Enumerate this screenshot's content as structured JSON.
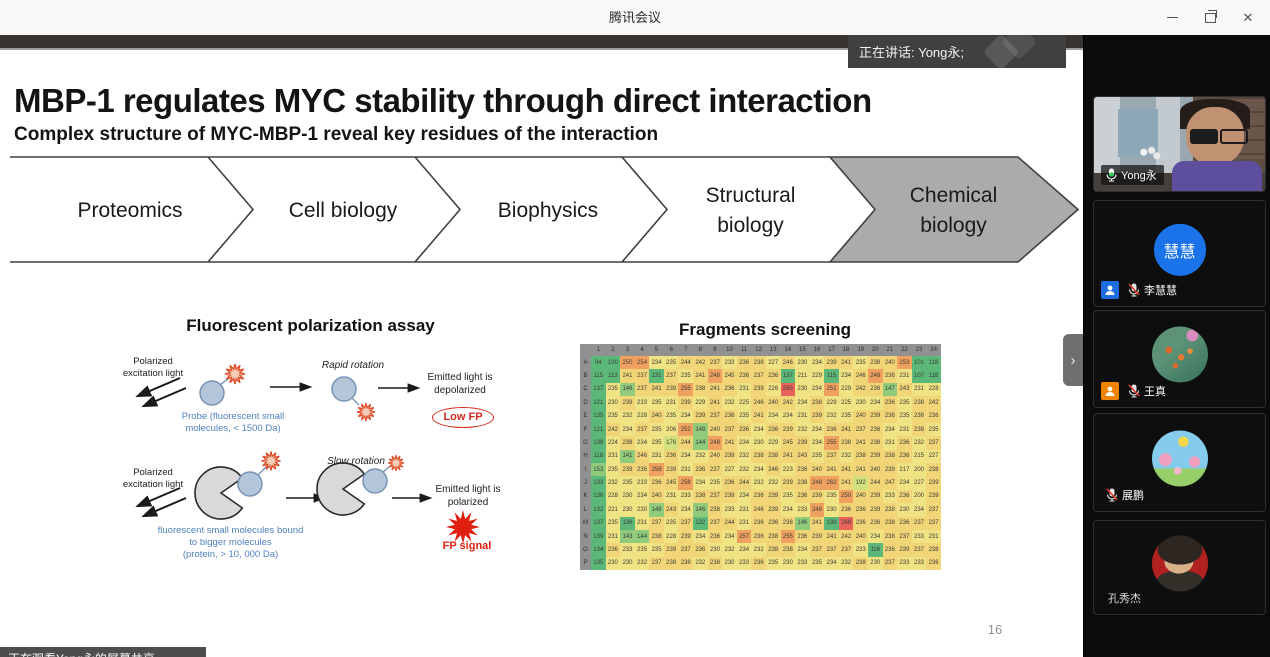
{
  "window": {
    "title": "腾讯会议",
    "controls": {
      "close": "✕"
    }
  },
  "speaker_banner": {
    "label": "正在讲话: Yong永;"
  },
  "share_overlay": {
    "label": "正在观看Yong永的屏幕共享"
  },
  "slide": {
    "title": "MBP-1 regulates MYC stability through direct interaction",
    "subtitle": "Complex structure of MYC-MBP-1 reveal key residues of the interaction",
    "page_number": "16",
    "pipeline": {
      "steps": [
        {
          "label": "Proteomics",
          "highlighted": false
        },
        {
          "label": "Cell biology",
          "highlighted": false
        },
        {
          "label": "Biophysics",
          "highlighted": false
        },
        {
          "label": "Structural\nbiology",
          "highlighted": false
        },
        {
          "label": "Chemical\nbiology",
          "highlighted": true
        }
      ]
    },
    "fp_assay": {
      "title": "Fluorescent polarization assay",
      "row1": {
        "left_label": "Polarized\nexcitation light",
        "motion_label": "Rapid rotation",
        "result_label": "Emitted light is\ndepolarized",
        "result_badge": "Low FP",
        "caption": "Probe (fluorescent small\nmolecules, < 1500 Da)"
      },
      "row2": {
        "left_label": "Polarized\nexcitation light",
        "motion_label": "Slow rotation",
        "result_label": "Emitted light is\npolarized",
        "result_badge": "FP signal",
        "caption": "fluorescent small molecules bound\nto bigger molecules\n(protein,  > 10, 000 Da)"
      }
    },
    "fragments": {
      "title": "Fragments screening",
      "col_labels": [
        "1",
        "2",
        "3",
        "4",
        "5",
        "6",
        "7",
        "8",
        "9",
        "10",
        "11",
        "12",
        "13",
        "14",
        "15",
        "16",
        "17",
        "18",
        "19",
        "20",
        "21",
        "22",
        "23",
        "24"
      ],
      "row_labels": [
        "A",
        "B",
        "C",
        "D",
        "E",
        "F",
        "G",
        "H",
        "I",
        "J",
        "K",
        "L",
        "M",
        "N",
        "O",
        "P"
      ],
      "cells": [
        [
          94,
          100,
          250,
          254,
          234,
          235,
          244,
          242,
          237,
          233,
          236,
          238,
          227,
          246,
          230,
          234,
          239,
          241,
          235,
          238,
          240,
          253,
          101,
          118
        ],
        [
          115,
          113,
          241,
          237,
          131,
          237,
          235,
          241,
          248,
          245,
          236,
          237,
          236,
          137,
          211,
          229,
          115,
          234,
          246,
          248,
          236,
          231,
          107,
          118
        ],
        [
          137,
          235,
          146,
          237,
          241,
          239,
          255,
          238,
          241,
          236,
          231,
          239,
          226,
          285,
          230,
          234,
          251,
          229,
          242,
          236,
          147,
          243,
          231,
          228
        ],
        [
          121,
          230,
          239,
          233,
          235,
          231,
          239,
          229,
          241,
          232,
          225,
          246,
          240,
          242,
          234,
          238,
          229,
          225,
          230,
          234,
          236,
          235,
          238,
          242
        ],
        [
          135,
          235,
          232,
          228,
          240,
          235,
          234,
          239,
          237,
          236,
          235,
          241,
          234,
          234,
          231,
          239,
          232,
          235,
          240,
          239,
          236,
          235,
          238,
          236
        ],
        [
          121,
          242,
          234,
          237,
          235,
          206,
          252,
          148,
          240,
          237,
          236,
          234,
          236,
          239,
          232,
          234,
          236,
          241,
          237,
          236,
          234,
          231,
          238,
          235
        ],
        [
          138,
          224,
          238,
          234,
          235,
          176,
          244,
          144,
          248,
          241,
          234,
          230,
          229,
          245,
          239,
          234,
          255,
          238,
          241,
          238,
          231,
          236,
          232,
          237
        ],
        [
          118,
          231,
          141,
          246,
          231,
          236,
          234,
          232,
          240,
          239,
          232,
          238,
          238,
          241,
          243,
          235,
          237,
          232,
          238,
          239,
          238,
          236,
          215,
          227
        ],
        [
          153,
          235,
          239,
          236,
          258,
          239,
          231,
          236,
          237,
          227,
          232,
          234,
          246,
          223,
          236,
          240,
          241,
          241,
          241,
          240,
          239,
          217,
          200,
          238
        ],
        [
          133,
          232,
          235,
          233,
          236,
          245,
          258,
          234,
          235,
          236,
          244,
          232,
          232,
          239,
          238,
          248,
          262,
          241,
          192,
          244,
          247,
          234,
          227,
          239
        ],
        [
          136,
          228,
          230,
          234,
          240,
          231,
          233,
          238,
          237,
          239,
          234,
          236,
          239,
          235,
          236,
          239,
          235,
          250,
          240,
          239,
          233,
          236,
          200,
          239
        ],
        [
          132,
          221,
          230,
          230,
          148,
          243,
          234,
          146,
          238,
          233,
          231,
          246,
          239,
          234,
          233,
          248,
          230,
          236,
          236,
          239,
          238,
          230,
          234,
          237
        ],
        [
          137,
          235,
          136,
          231,
          237,
          235,
          237,
          132,
          237,
          244,
          231,
          236,
          236,
          238,
          146,
          241,
          138,
          268,
          236,
          236,
          238,
          236,
          237,
          237
        ],
        [
          139,
          231,
          143,
          144,
          238,
          228,
          239,
          234,
          236,
          234,
          257,
          236,
          238,
          255,
          236,
          239,
          241,
          242,
          240,
          234,
          238,
          237,
          233,
          231
        ],
        [
          134,
          236,
          233,
          235,
          235,
          239,
          237,
          236,
          230,
          232,
          234,
          232,
          238,
          238,
          234,
          237,
          237,
          237,
          233,
          116,
          236,
          239,
          237,
          238
        ],
        [
          135,
          230,
          230,
          232,
          237,
          238,
          238,
          232,
          238,
          230,
          233,
          236,
          235,
          230,
          233,
          235,
          234,
          232,
          238,
          230,
          237,
          233,
          233,
          236
        ]
      ]
    }
  },
  "sidebar": {
    "collapse_glyph": "›",
    "participants": [
      {
        "name": "Yong永",
        "mic": "on"
      },
      {
        "name": "李慧慧",
        "avatar_text": "慧慧",
        "mic": "muted",
        "badge": "blue"
      },
      {
        "name": "王真",
        "mic": "muted",
        "badge": "orange"
      },
      {
        "name": "展鹏",
        "mic": "muted"
      },
      {
        "name": "孔秀杰",
        "mic": "none"
      }
    ]
  },
  "colors": {
    "chevron_highlight": "#ababab",
    "heatmap_green": "#5cb878",
    "heatmap_yellow": "#f0e383",
    "heatmap_orange": "#f0a15f",
    "heatmap_red": "#e9635a",
    "badge_blue": "#1d6ce0",
    "badge_orange": "#f08300",
    "avatar_blue": "#1a73e8",
    "fp_red": "#d22a1e",
    "fp_blue_text": "#4f81bd"
  }
}
